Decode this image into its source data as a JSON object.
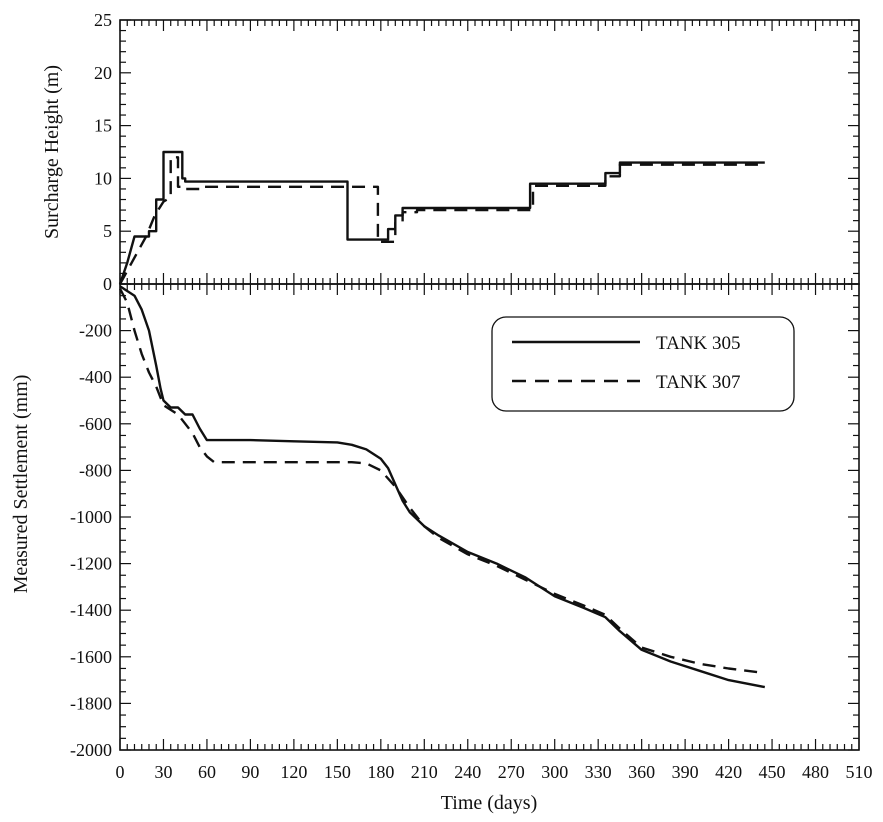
{
  "chart_data": [
    {
      "type": "line",
      "panel": "top",
      "xlabel": "",
      "ylabel": "Surcharge Height (m)",
      "xlim": [
        0,
        510
      ],
      "ylim": [
        0,
        25
      ],
      "x_ticks": [
        0,
        30,
        60,
        90,
        120,
        150,
        180,
        210,
        240,
        270,
        300,
        330,
        360,
        390,
        420,
        450,
        480,
        510
      ],
      "y_ticks": [
        0,
        5,
        10,
        15,
        20,
        25
      ],
      "grid": false,
      "series": [
        {
          "name": "TANK 305",
          "style": "solid",
          "points": [
            [
              0,
              0
            ],
            [
              5,
              2
            ],
            [
              10,
              4.5
            ],
            [
              20,
              4.5
            ],
            [
              20,
              5
            ],
            [
              25,
              5
            ],
            [
              25,
              8
            ],
            [
              30,
              8
            ],
            [
              30,
              12.5
            ],
            [
              43,
              12.5
            ],
            [
              43,
              10
            ],
            [
              45,
              10
            ],
            [
              45,
              9.7
            ],
            [
              157,
              9.7
            ],
            [
              157,
              4.2
            ],
            [
              185,
              4.2
            ],
            [
              185,
              5.2
            ],
            [
              190,
              5.2
            ],
            [
              190,
              6.5
            ],
            [
              195,
              6.5
            ],
            [
              195,
              7.2
            ],
            [
              283,
              7.2
            ],
            [
              283,
              9.5
            ],
            [
              335,
              9.5
            ],
            [
              335,
              10.5
            ],
            [
              345,
              10.5
            ],
            [
              345,
              11.5
            ],
            [
              445,
              11.5
            ]
          ]
        },
        {
          "name": "TANK 307",
          "style": "dashed",
          "points": [
            [
              0,
              0
            ],
            [
              6,
              1.5
            ],
            [
              12,
              3
            ],
            [
              18,
              4.5
            ],
            [
              24,
              6.5
            ],
            [
              30,
              7.8
            ],
            [
              35,
              8.2
            ],
            [
              35,
              12
            ],
            [
              40,
              12
            ],
            [
              40,
              9.2
            ],
            [
              45,
              9.2
            ],
            [
              45,
              9
            ],
            [
              55,
              9
            ],
            [
              55,
              9.2
            ],
            [
              178,
              9.2
            ],
            [
              178,
              4.0
            ],
            [
              190,
              4.0
            ],
            [
              190,
              5.8
            ],
            [
              195,
              5.8
            ],
            [
              195,
              6.8
            ],
            [
              205,
              6.8
            ],
            [
              205,
              7
            ],
            [
              285,
              7
            ],
            [
              285,
              9.3
            ],
            [
              335,
              9.3
            ],
            [
              335,
              10.2
            ],
            [
              345,
              10.2
            ],
            [
              345,
              11.3
            ],
            [
              445,
              11.3
            ]
          ]
        }
      ]
    },
    {
      "type": "line",
      "panel": "bottom",
      "xlabel": "Time (days)",
      "ylabel": "Measured Settlement (mm)",
      "xlim": [
        0,
        510
      ],
      "ylim": [
        -2000,
        0
      ],
      "x_ticks": [
        0,
        30,
        60,
        90,
        120,
        150,
        180,
        210,
        240,
        270,
        300,
        330,
        360,
        390,
        420,
        450,
        480,
        510
      ],
      "y_ticks": [
        0,
        -200,
        -400,
        -600,
        -800,
        -1000,
        -1200,
        -1400,
        -1600,
        -1800,
        -2000
      ],
      "grid": false,
      "legend_position": "top-right",
      "series": [
        {
          "name": "TANK 305",
          "style": "solid",
          "points": [
            [
              0,
              -10
            ],
            [
              5,
              -30
            ],
            [
              10,
              -50
            ],
            [
              15,
              -110
            ],
            [
              20,
              -200
            ],
            [
              25,
              -350
            ],
            [
              28,
              -450
            ],
            [
              30,
              -500
            ],
            [
              35,
              -530
            ],
            [
              40,
              -530
            ],
            [
              45,
              -560
            ],
            [
              50,
              -560
            ],
            [
              55,
              -620
            ],
            [
              60,
              -670
            ],
            [
              90,
              -670
            ],
            [
              120,
              -675
            ],
            [
              150,
              -680
            ],
            [
              160,
              -690
            ],
            [
              170,
              -710
            ],
            [
              180,
              -750
            ],
            [
              185,
              -790
            ],
            [
              190,
              -860
            ],
            [
              195,
              -930
            ],
            [
              200,
              -980
            ],
            [
              210,
              -1040
            ],
            [
              220,
              -1080
            ],
            [
              240,
              -1150
            ],
            [
              260,
              -1200
            ],
            [
              280,
              -1260
            ],
            [
              300,
              -1340
            ],
            [
              320,
              -1390
            ],
            [
              335,
              -1430
            ],
            [
              345,
              -1490
            ],
            [
              360,
              -1570
            ],
            [
              380,
              -1620
            ],
            [
              400,
              -1660
            ],
            [
              420,
              -1700
            ],
            [
              445,
              -1730
            ]
          ]
        },
        {
          "name": "TANK 307",
          "style": "dashed",
          "points": [
            [
              0,
              -20
            ],
            [
              5,
              -80
            ],
            [
              10,
              -200
            ],
            [
              15,
              -300
            ],
            [
              20,
              -380
            ],
            [
              25,
              -440
            ],
            [
              30,
              -520
            ],
            [
              40,
              -560
            ],
            [
              50,
              -640
            ],
            [
              55,
              -700
            ],
            [
              60,
              -740
            ],
            [
              65,
              -765
            ],
            [
              90,
              -765
            ],
            [
              120,
              -765
            ],
            [
              150,
              -765
            ],
            [
              160,
              -765
            ],
            [
              170,
              -770
            ],
            [
              180,
              -800
            ],
            [
              190,
              -870
            ],
            [
              200,
              -960
            ],
            [
              210,
              -1040
            ],
            [
              220,
              -1090
            ],
            [
              240,
              -1160
            ],
            [
              260,
              -1210
            ],
            [
              280,
              -1270
            ],
            [
              300,
              -1330
            ],
            [
              320,
              -1380
            ],
            [
              335,
              -1420
            ],
            [
              345,
              -1480
            ],
            [
              360,
              -1560
            ],
            [
              380,
              -1600
            ],
            [
              400,
              -1630
            ],
            [
              420,
              -1650
            ],
            [
              445,
              -1670
            ]
          ]
        }
      ]
    }
  ]
}
